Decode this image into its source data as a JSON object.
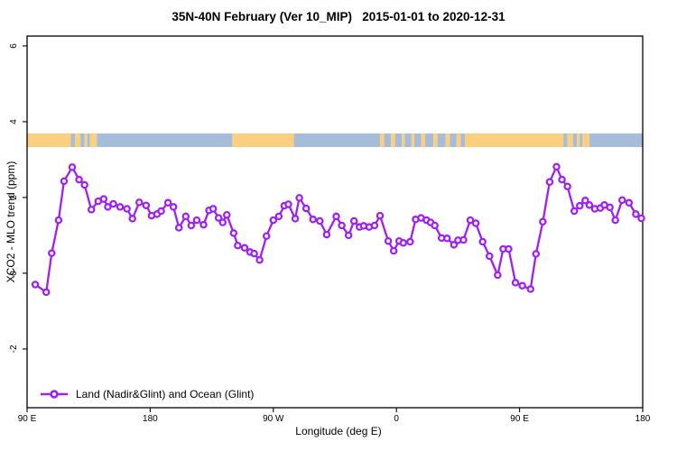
{
  "title": "35N-40N February (Ver 10_MIP)   2015-01-01 to 2020-12-31",
  "legend": {
    "label": "Land (Nadir&Glint) and Ocean (Glint)"
  },
  "colors": {
    "line": "#A020F0",
    "marker_fill": "#FFFFFF",
    "land_band": "#FAD07E",
    "ocean_band": "#A6BCD9",
    "axis": "#000000"
  },
  "chart_data": {
    "type": "line",
    "title": "35N-40N February (Ver 10_MIP)   2015-01-01 to 2020-12-31",
    "xlabel": "Longitude (deg E)",
    "ylabel": "XCO2 - MLO trend (ppm)",
    "xlim": [
      0,
      450
    ],
    "ylim": [
      -3.55,
      6.26
    ],
    "grid": false,
    "legend_position": "bottom-left-inside",
    "x_ticks": [
      {
        "v": 0,
        "label": "90 E"
      },
      {
        "v": 90,
        "label": "180"
      },
      {
        "v": 180,
        "label": "90 W"
      },
      {
        "v": 270,
        "label": "0"
      },
      {
        "v": 360,
        "label": "90 E"
      },
      {
        "v": 450,
        "label": "180"
      }
    ],
    "y_ticks": [
      {
        "v": -2,
        "label": "-2"
      },
      {
        "v": 0,
        "label": "0"
      },
      {
        "v": 2,
        "label": "2"
      },
      {
        "v": 4,
        "label": "4"
      },
      {
        "v": 6,
        "label": "6"
      }
    ],
    "band": {
      "description": "land/ocean surface-type strip drawn across plot",
      "y_range": [
        3.33,
        3.69
      ],
      "segments": [
        [
          0,
          32,
          "land"
        ],
        [
          32,
          35,
          "ocean"
        ],
        [
          35,
          39,
          "land"
        ],
        [
          39,
          42,
          "ocean"
        ],
        [
          42,
          44,
          "land"
        ],
        [
          44,
          46,
          "ocean"
        ],
        [
          46,
          51,
          "land"
        ],
        [
          51,
          150,
          "ocean"
        ],
        [
          150,
          195,
          "land"
        ],
        [
          195,
          258,
          "ocean"
        ],
        [
          258,
          261,
          "land"
        ],
        [
          261,
          266,
          "ocean"
        ],
        [
          266,
          269,
          "land"
        ],
        [
          269,
          274,
          "ocean"
        ],
        [
          274,
          276,
          "land"
        ],
        [
          276,
          281,
          "ocean"
        ],
        [
          281,
          283,
          "land"
        ],
        [
          283,
          288,
          "ocean"
        ],
        [
          288,
          291,
          "land"
        ],
        [
          291,
          297,
          "ocean"
        ],
        [
          297,
          300,
          "land"
        ],
        [
          300,
          306,
          "ocean"
        ],
        [
          306,
          309,
          "land"
        ],
        [
          309,
          314,
          "ocean"
        ],
        [
          314,
          317,
          "land"
        ],
        [
          317,
          320,
          "ocean"
        ],
        [
          320,
          392,
          "land"
        ],
        [
          392,
          395,
          "ocean"
        ],
        [
          395,
          399,
          "land"
        ],
        [
          399,
          402,
          "ocean"
        ],
        [
          402,
          404,
          "land"
        ],
        [
          404,
          406,
          "ocean"
        ],
        [
          406,
          411,
          "land"
        ],
        [
          411,
          450,
          "ocean"
        ]
      ]
    },
    "series": [
      {
        "name": "Land (Nadir&Glint) and Ocean (Glint)",
        "points": [
          [
            6,
            -0.3
          ],
          [
            14,
            -0.5
          ],
          [
            18,
            0.53
          ],
          [
            23,
            1.4
          ],
          [
            27,
            2.43
          ],
          [
            33,
            2.8
          ],
          [
            38,
            2.47
          ],
          [
            42,
            2.33
          ],
          [
            47,
            1.68
          ],
          [
            52,
            1.9
          ],
          [
            56,
            1.96
          ],
          [
            59,
            1.75
          ],
          [
            63,
            1.83
          ],
          [
            68,
            1.75
          ],
          [
            73,
            1.7
          ],
          [
            77,
            1.44
          ],
          [
            82,
            1.87
          ],
          [
            87,
            1.79
          ],
          [
            91,
            1.52
          ],
          [
            95,
            1.56
          ],
          [
            98,
            1.64
          ],
          [
            103,
            1.86
          ],
          [
            107,
            1.75
          ],
          [
            111,
            1.2
          ],
          [
            116,
            1.5
          ],
          [
            120,
            1.26
          ],
          [
            124,
            1.4
          ],
          [
            129,
            1.28
          ],
          [
            133,
            1.66
          ],
          [
            136,
            1.7
          ],
          [
            140,
            1.46
          ],
          [
            143,
            1.34
          ],
          [
            146,
            1.54
          ],
          [
            151,
            1.06
          ],
          [
            154,
            0.73
          ],
          [
            159,
            0.67
          ],
          [
            163,
            0.56
          ],
          [
            166,
            0.52
          ],
          [
            170,
            0.35
          ],
          [
            175,
            0.98
          ],
          [
            180,
            1.4
          ],
          [
            184,
            1.5
          ],
          [
            188,
            1.78
          ],
          [
            191,
            1.82
          ],
          [
            196,
            1.44
          ],
          [
            199,
            1.99
          ],
          [
            204,
            1.71
          ],
          [
            209,
            1.42
          ],
          [
            214,
            1.38
          ],
          [
            219,
            1.02
          ],
          [
            226,
            1.5
          ],
          [
            230,
            1.26
          ],
          [
            235,
            1.0
          ],
          [
            239,
            1.38
          ],
          [
            243,
            1.22
          ],
          [
            246,
            1.25
          ],
          [
            250,
            1.22
          ],
          [
            254,
            1.26
          ],
          [
            258,
            1.52
          ],
          [
            264,
            0.85
          ],
          [
            268,
            0.59
          ],
          [
            272,
            0.85
          ],
          [
            275,
            0.8
          ],
          [
            280,
            0.83
          ],
          [
            284,
            1.42
          ],
          [
            288,
            1.46
          ],
          [
            292,
            1.4
          ],
          [
            295,
            1.34
          ],
          [
            298,
            1.26
          ],
          [
            303,
            0.93
          ],
          [
            307,
            0.92
          ],
          [
            312,
            0.75
          ],
          [
            315,
            0.87
          ],
          [
            319,
            0.88
          ],
          [
            324,
            1.4
          ],
          [
            328,
            1.32
          ],
          [
            333,
            0.83
          ],
          [
            338,
            0.45
          ],
          [
            344,
            -0.05
          ],
          [
            348,
            0.64
          ],
          [
            352,
            0.64
          ],
          [
            357,
            -0.25
          ],
          [
            362,
            -0.33
          ],
          [
            368,
            -0.42
          ],
          [
            372,
            0.51
          ],
          [
            377,
            1.36
          ],
          [
            382,
            2.41
          ],
          [
            387,
            2.81
          ],
          [
            391,
            2.47
          ],
          [
            395,
            2.29
          ],
          [
            400,
            1.64
          ],
          [
            404,
            1.78
          ],
          [
            408,
            1.92
          ],
          [
            411,
            1.8
          ],
          [
            415,
            1.7
          ],
          [
            419,
            1.72
          ],
          [
            422,
            1.8
          ],
          [
            426,
            1.74
          ],
          [
            430,
            1.4
          ],
          [
            435,
            1.93
          ],
          [
            440,
            1.86
          ],
          [
            445,
            1.56
          ],
          [
            449,
            1.45
          ]
        ]
      }
    ]
  }
}
